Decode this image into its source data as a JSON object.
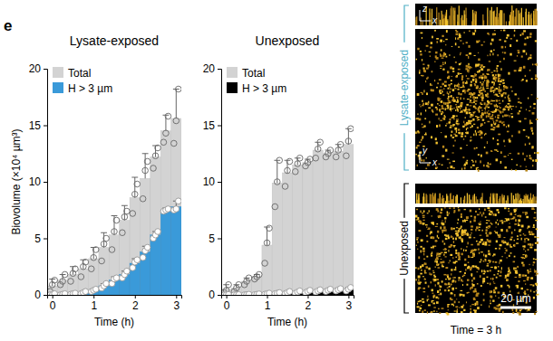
{
  "panel": "e",
  "chart_data": [
    {
      "type": "bar",
      "title": "Lysate-exposed",
      "xlabel": "Time (h)",
      "ylabel": "Biovolume (×10⁴ µm³)",
      "x": [
        0,
        0.25,
        0.5,
        0.75,
        1,
        1.25,
        1.5,
        1.75,
        2,
        2.25,
        2.5,
        2.75,
        3
      ],
      "xlim": [
        -0.125,
        3.125
      ],
      "xticks": [
        0,
        1,
        2,
        3
      ],
      "ylim": [
        0,
        20
      ],
      "yticks": [
        0,
        5,
        10,
        15,
        20
      ],
      "stacked": false,
      "legend": "upper left",
      "series": [
        {
          "name": "Total",
          "color": "#d3d3d3",
          "values": [
            0.8,
            1.3,
            1.8,
            2.3,
            3.2,
            4.2,
            5.3,
            6.6,
            8.6,
            10.3,
            12.2,
            14.5,
            15.6
          ],
          "error": [
            0.6,
            0.5,
            0.7,
            0.8,
            1.0,
            1.3,
            1.7,
            1.3,
            1.8,
            2.2,
            1.0,
            1.4,
            2.6
          ],
          "points": [
            [
              0.3,
              0.9,
              1.3
            ],
            [
              0.9,
              1.2,
              1.8
            ],
            [
              1.2,
              1.9,
              2.3
            ],
            [
              1.6,
              2.5,
              2.9
            ],
            [
              2.3,
              3.3,
              4.0
            ],
            [
              3.0,
              4.5,
              5.0
            ],
            [
              4.0,
              5.6,
              6.6
            ],
            [
              5.5,
              6.9,
              7.4
            ],
            [
              7.2,
              8.9,
              9.8
            ],
            [
              8.5,
              11.0,
              11.8
            ],
            [
              11.2,
              12.3,
              13.0
            ],
            [
              13.5,
              14.3,
              15.8
            ],
            [
              13.4,
              15.4,
              18.2
            ]
          ]
        },
        {
          "name": "H > 3 µm",
          "color": "#3a9ad9",
          "values": [
            0,
            0.05,
            0.1,
            0.2,
            0.4,
            0.8,
            1.3,
            1.8,
            2.8,
            3.8,
            5.3,
            7.5,
            7.8
          ],
          "error": [
            0.05,
            0.05,
            0.05,
            0.1,
            0.1,
            0.2,
            0.3,
            0.3,
            0.4,
            0.5,
            0.3,
            0.2,
            0.5
          ],
          "points": [
            [
              0,
              0,
              0.1
            ],
            [
              0,
              0.05,
              0.1
            ],
            [
              0.05,
              0.1,
              0.15
            ],
            [
              0.1,
              0.2,
              0.3
            ],
            [
              0.3,
              0.4,
              0.5
            ],
            [
              0.6,
              0.8,
              1.0
            ],
            [
              1.0,
              1.4,
              1.5
            ],
            [
              1.5,
              1.8,
              2.1
            ],
            [
              2.4,
              2.9,
              3.1
            ],
            [
              3.3,
              3.9,
              4.2
            ],
            [
              5.0,
              5.3,
              5.6
            ],
            [
              7.4,
              7.5,
              7.6
            ],
            [
              7.5,
              7.6,
              8.3
            ]
          ]
        }
      ]
    },
    {
      "type": "bar",
      "title": "Unexposed",
      "xlabel": "Time (h)",
      "x": [
        0,
        0.25,
        0.5,
        0.75,
        1,
        1.25,
        1.5,
        1.75,
        2,
        2.25,
        2.5,
        2.75,
        3
      ],
      "xlim": [
        -0.125,
        3.125
      ],
      "xticks": [
        0,
        1,
        2,
        3
      ],
      "ylim": [
        0,
        20
      ],
      "yticks": [
        0,
        5,
        10,
        15,
        20
      ],
      "stacked": false,
      "legend": "upper left",
      "series": [
        {
          "name": "Total",
          "color": "#d3d3d3",
          "values": [
            0.5,
            0.6,
            1.2,
            1.6,
            4.4,
            9.9,
            10.8,
            11.5,
            11.7,
            12.8,
            12.5,
            12.7,
            13.3
          ],
          "error": [
            0.4,
            0.3,
            0.3,
            0.2,
            1.6,
            2.0,
            1.1,
            0.6,
            0.3,
            0.7,
            0.3,
            0.6,
            1.4
          ],
          "points": [
            [
              0.2,
              0.4,
              0.9
            ],
            [
              0.3,
              0.6,
              0.9
            ],
            [
              0.9,
              1.2,
              1.5
            ],
            [
              1.4,
              1.6,
              1.8
            ],
            [
              2.8,
              4.6,
              5.9
            ],
            [
              7.8,
              10.0,
              11.9
            ],
            [
              9.6,
              11.0,
              11.8
            ],
            [
              10.9,
              11.6,
              12.1
            ],
            [
              11.4,
              11.7,
              12.0
            ],
            [
              12.1,
              12.9,
              13.5
            ],
            [
              12.2,
              12.5,
              12.8
            ],
            [
              12.2,
              12.8,
              13.3
            ],
            [
              12.3,
              13.6,
              14.7
            ]
          ]
        },
        {
          "name": "H > 3 µm",
          "color": "#000000",
          "values": [
            0,
            0,
            0.02,
            0.05,
            0.1,
            0.15,
            0.2,
            0.25,
            0.3,
            0.35,
            0.4,
            0.45,
            0.5
          ],
          "error": [
            0.02,
            0.02,
            0.03,
            0.05,
            0.05,
            0.05,
            0.1,
            0.1,
            0.1,
            0.1,
            0.1,
            0.1,
            0.15
          ],
          "points": [
            [
              0,
              0,
              0.03
            ],
            [
              0,
              0,
              0.02
            ],
            [
              0,
              0.02,
              0.05
            ],
            [
              0.02,
              0.05,
              0.08
            ],
            [
              0.05,
              0.1,
              0.15
            ],
            [
              0.1,
              0.15,
              0.2
            ],
            [
              0.1,
              0.2,
              0.3
            ],
            [
              0.15,
              0.25,
              0.35
            ],
            [
              0.2,
              0.3,
              0.4
            ],
            [
              0.25,
              0.35,
              0.45
            ],
            [
              0.3,
              0.4,
              0.5
            ],
            [
              0.35,
              0.45,
              0.55
            ],
            [
              0.35,
              0.5,
              0.65
            ]
          ]
        }
      ]
    }
  ],
  "images": {
    "panel_labels": [
      "Lysate-exposed",
      "Unexposed"
    ],
    "axis_labels": [
      "z",
      "x",
      "y",
      "x"
    ],
    "scale_bar": "20 µm",
    "time_label": "Time = 3 h"
  }
}
